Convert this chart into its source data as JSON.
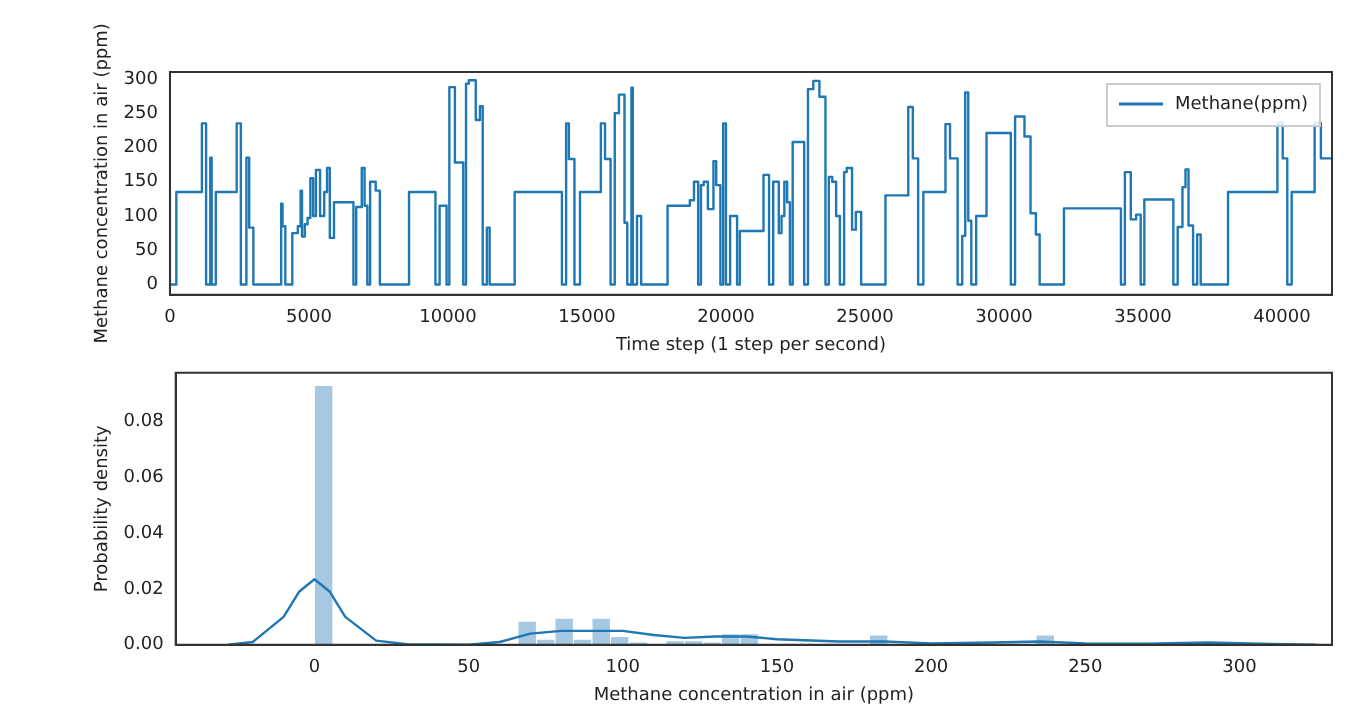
{
  "chart_data": [
    {
      "type": "step",
      "xlabel": "Time step (1 step per second)",
      "ylabel": "Methane concentration in air (ppm)",
      "legend": "top right",
      "xlim": [
        0,
        41800
      ],
      "xticks": [
        0,
        5000,
        10000,
        15000,
        20000,
        25000,
        30000,
        35000,
        40000
      ],
      "ylim": [
        -15,
        310
      ],
      "yticks": [
        0,
        50,
        100,
        150,
        200,
        250,
        300
      ],
      "series": [
        {
          "name": "Methane(ppm)",
          "color": "#1f77b4",
          "x": [
            0,
            230,
            1150,
            1300,
            1450,
            1500,
            1650,
            2400,
            2550,
            2750,
            2850,
            3000,
            4000,
            4050,
            4150,
            4400,
            4600,
            4700,
            4750,
            4850,
            4950,
            5050,
            5150,
            5250,
            5400,
            5550,
            5650,
            5750,
            5900,
            6600,
            6700,
            6900,
            7000,
            7100,
            7200,
            7400,
            7550,
            8600,
            9550,
            9700,
            9950,
            10050,
            10250,
            10550,
            10650,
            10750,
            11000,
            11150,
            11250,
            11400,
            11500,
            12400,
            14100,
            14250,
            14350,
            14550,
            14750,
            15500,
            15650,
            15850,
            16000,
            16150,
            16350,
            16450,
            16600,
            16650,
            16800,
            16950,
            17900,
            18700,
            18850,
            19000,
            19100,
            19200,
            19350,
            19550,
            19650,
            19800,
            19900,
            20000,
            20150,
            20400,
            20500,
            21350,
            21550,
            21700,
            21900,
            22000,
            22100,
            22200,
            22300,
            22400,
            22814,
            22950,
            23142,
            23361,
            23579,
            23700,
            23825,
            23962,
            24098,
            24250,
            24344,
            24536,
            24672,
            24863,
            25738,
            26557,
            26721,
            26913,
            27100,
            27896,
            28060,
            28333,
            28500,
            28607,
            28716,
            28825,
            29000,
            29372,
            30246,
            30400,
            30738,
            30956,
            31148,
            31284,
            32158,
            34208,
            34350,
            34563,
            34754,
            34918,
            35050,
            36093,
            36250,
            36421,
            36530,
            36639,
            36803,
            36950,
            37077,
            38060,
            39836,
            40027,
            40191,
            40350,
            41175,
            41400,
            41600,
            41800
          ],
          "values": [
            135,
            0,
            135,
            235,
            0,
            185,
            0,
            135,
            235,
            0,
            185,
            83,
            0,
            118,
            85,
            0,
            75,
            85,
            137,
            70,
            88,
            97,
            155,
            100,
            167,
            100,
            135,
            170,
            68,
            120,
            0,
            113,
            170,
            115,
            0,
            150,
            137,
            0,
            135,
            0,
            115,
            0,
            288,
            178,
            0,
            293,
            298,
            240,
            260,
            0,
            83,
            0,
            135,
            0,
            235,
            183,
            0,
            135,
            235,
            183,
            0,
            250,
            277,
            90,
            0,
            287,
            0,
            100,
            0,
            115,
            123,
            150,
            0,
            145,
            150,
            110,
            180,
            145,
            0,
            235,
            0,
            100,
            0,
            78,
            160,
            0,
            150,
            75,
            100,
            150,
            120,
            0,
            208,
            0,
            285,
            297,
            274,
            0,
            157,
            150,
            100,
            0,
            164,
            170,
            80,
            106,
            0,
            130,
            259,
            184,
            0,
            135,
            234,
            184,
            0,
            71,
            280,
            93,
            0,
            100,
            221,
            0,
            245,
            216,
            104,
            73,
            0,
            111,
            0,
            164,
            95,
            102,
            0,
            124,
            0,
            84,
            142,
            168,
            86,
            0,
            73,
            0,
            135,
            236,
            184,
            0,
            135,
            236,
            184,
            184
          ]
        }
      ]
    },
    {
      "type": "histogram",
      "xlabel": "Methane concentration in air (ppm)",
      "ylabel": "Probability density",
      "xlim": [
        -45,
        330
      ],
      "xticks": [
        0,
        50,
        100,
        150,
        200,
        250,
        300
      ],
      "ylim": [
        0,
        0.0975
      ],
      "yticks": [
        {
          "value": 0,
          "label": "0.00"
        },
        {
          "value": 0.02,
          "label": "0.02"
        },
        {
          "value": 0.04,
          "label": "0.04"
        },
        {
          "value": 0.06,
          "label": "0.06"
        },
        {
          "value": 0.08,
          "label": "0.08"
        }
      ],
      "bins": [
        0,
        6,
        12,
        18,
        24,
        30,
        36,
        42,
        48,
        54,
        60,
        66,
        72,
        78,
        84,
        90,
        96,
        102,
        108,
        114,
        120,
        126,
        132,
        138,
        144,
        150,
        156,
        162,
        168,
        174,
        180,
        186,
        192,
        198,
        204,
        210,
        216,
        222,
        228,
        234,
        240,
        246,
        252,
        258,
        264,
        270,
        276,
        282,
        288,
        294,
        300
      ],
      "values": [
        0.093,
        0,
        0,
        0,
        0,
        0,
        0,
        0,
        0,
        0,
        0,
        0.0085,
        0.002,
        0.0095,
        0.002,
        0.0095,
        0.003,
        0.001,
        0,
        0.0015,
        0.0015,
        0.001,
        0.004,
        0.004,
        null,
        null,
        0,
        null,
        null,
        0,
        0.0035,
        0,
        0,
        0,
        0,
        0,
        0,
        0,
        0,
        0.0035,
        0,
        0,
        0,
        0,
        0,
        0,
        0,
        0,
        0.001,
        0.0005
      ],
      "color": "#a6c8e2",
      "series": [
        {
          "type": "line",
          "color": "#1f77b4",
          "x": [
            -28,
            -20,
            -10,
            -5,
            0,
            5,
            10,
            20,
            30,
            50,
            60,
            70,
            80,
            90,
            100,
            110,
            120,
            130,
            140,
            150,
            170,
            185,
            200,
            220,
            235,
            250,
            270,
            290,
            310,
            325
          ],
          "values": [
            0,
            0.001,
            0.01,
            0.019,
            0.0235,
            0.019,
            0.01,
            0.0015,
            0.0002,
            0,
            0.001,
            0.004,
            0.005,
            0.005,
            0.005,
            0.0035,
            0.0025,
            0.003,
            0.003,
            0.002,
            0.0012,
            0.0012,
            0.0005,
            0.0008,
            0.0012,
            0.0005,
            0.0004,
            0.0008,
            0.0003,
            0
          ]
        }
      ]
    }
  ]
}
